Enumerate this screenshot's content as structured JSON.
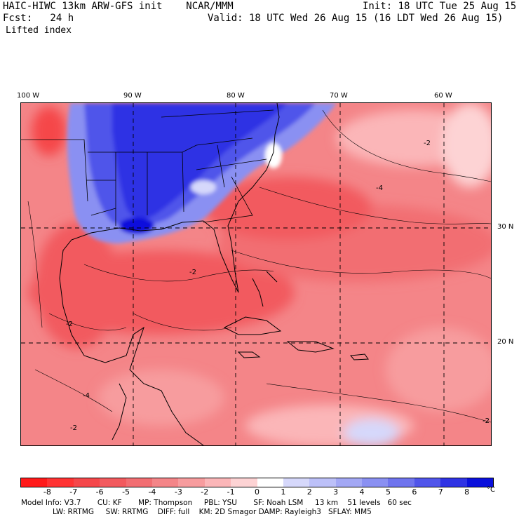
{
  "header": {
    "title": "HAIC-HIWC 13km ARW-GFS init    NCAR/MMM",
    "init": "Init: 18 UTC Tue 25 Aug 15",
    "fcst": "Fcst:   24 h",
    "valid": "Valid: 18 UTC Wed 26 Aug 15 (16 LDT Wed 26 Aug 15)",
    "field": "Lifted index"
  },
  "map": {
    "longitude_labels": [
      "100 W",
      "90 W",
      "80 W",
      "70 W",
      "60 W"
    ],
    "latitude_labels": [
      "30 N",
      "20 N"
    ],
    "contour_labels": [
      "-2",
      "-4",
      "-2",
      "-2",
      "-2",
      "-4",
      "-2"
    ]
  },
  "colorbar": {
    "ticks": [
      "-8",
      "-7",
      "-6",
      "-5",
      "-4",
      "-3",
      "-2",
      "-1",
      "0",
      "1",
      "2",
      "3",
      "4",
      "5",
      "6",
      "7",
      "8"
    ],
    "unit": "°C",
    "colors": [
      "#ff1a1a",
      "#ff3333",
      "#f5474a",
      "#f25a5e",
      "#f26e72",
      "#f48588",
      "#f79c9e",
      "#fbb6b8",
      "#fdd3d4",
      "#ffffff",
      "#d6d8fb",
      "#bcc0f8",
      "#a3a8f5",
      "#8a90f2",
      "#6f74ee",
      "#5055ea",
      "#2f33e4",
      "#0a10dc"
    ]
  },
  "model_info": {
    "line1": "Model Info: V3.7       CU: KF       MP: Thompson     PBL: YSU       SF: Noah LSM     13 km    51 levels   60 sec",
    "line2": "LW: RRTMG     SW: RRTMG    DIFF: full    KM: 2D Smagor DAMP: Rayleigh3   SFLAY: MM5"
  }
}
